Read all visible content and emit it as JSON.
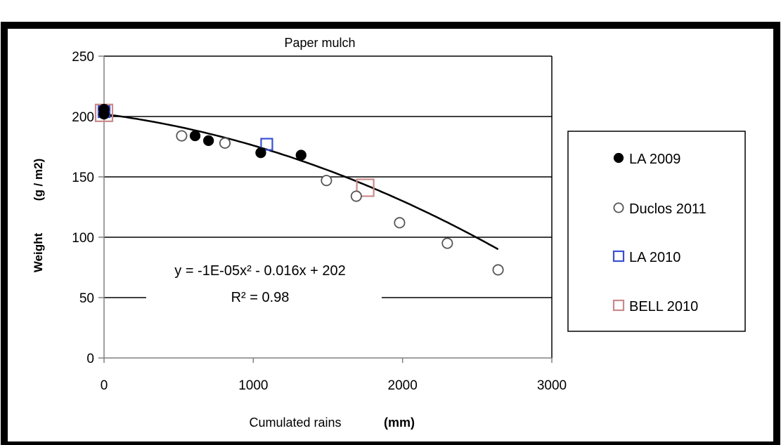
{
  "chart_data": {
    "type": "scatter",
    "title": "Paper mulch",
    "xlabel": "Cumulated rains",
    "xlabel_unit": "(mm)",
    "ylabel": "Weight",
    "ylabel_unit": "(g / m2)",
    "xlim": [
      0,
      3000
    ],
    "ylim": [
      0,
      250
    ],
    "x_ticks": [
      "0",
      "1000",
      "2000",
      "3000"
    ],
    "y_ticks": [
      "0",
      "50",
      "100",
      "150",
      "200",
      "250"
    ],
    "grid": "horizontal",
    "legend_position": "right",
    "series": [
      {
        "name": "LA 2009",
        "marker": "filled-circle",
        "color": "#000000",
        "points": [
          {
            "x": 0,
            "y": 206
          },
          {
            "x": 0,
            "y": 202
          },
          {
            "x": 610,
            "y": 184
          },
          {
            "x": 700,
            "y": 180
          },
          {
            "x": 1050,
            "y": 170
          },
          {
            "x": 1320,
            "y": 168
          }
        ]
      },
      {
        "name": "Duclos 2011",
        "marker": "open-circle",
        "color": "#555555",
        "points": [
          {
            "x": 520,
            "y": 184
          },
          {
            "x": 810,
            "y": 178
          },
          {
            "x": 1490,
            "y": 147
          },
          {
            "x": 1690,
            "y": 134
          },
          {
            "x": 1980,
            "y": 112
          },
          {
            "x": 2300,
            "y": 95
          },
          {
            "x": 2640,
            "y": 73
          }
        ]
      },
      {
        "name": "LA 2010",
        "marker": "open-square",
        "color": "#3a4fd0",
        "points": [
          {
            "x": 0,
            "y": 204
          },
          {
            "x": 1090,
            "y": 177
          }
        ]
      },
      {
        "name": "BELL 2010",
        "marker": "open-square",
        "color": "#c98a8a",
        "points": [
          {
            "x": 0,
            "y": 203
          },
          {
            "x": 1750,
            "y": 141
          }
        ]
      }
    ],
    "trendline": {
      "type": "polynomial",
      "coefficients": {
        "a": -1e-05,
        "b": -0.016,
        "c": 202
      },
      "x_range": [
        0,
        2640
      ],
      "color": "#000000",
      "equation": "y = -1E-05x² - 0.016x + 202",
      "r2": "R² = 0.98"
    }
  }
}
